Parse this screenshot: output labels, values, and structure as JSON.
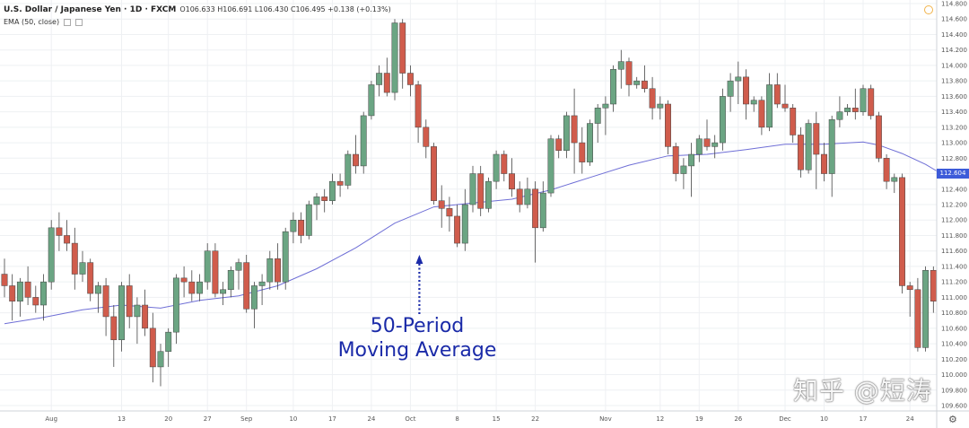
{
  "header": {
    "symbol": "U.S. Dollar / Japanese Yen · 1D · FXCM",
    "ohlc": "O106.633 H106.691 L106.430 C106.495 +0.138 (+0.13%)",
    "indicator": "EMA (50, close)"
  },
  "annotation": {
    "line1": "50-Period",
    "line2": "Moving Average"
  },
  "watermark": "知乎 @短涛",
  "price_tag": "112.604",
  "colors": {
    "up": "#6ba583",
    "down": "#d05c4c",
    "ema": "#6f6fd6",
    "arrow": "#1a2aa8",
    "grid": "#eef0f3",
    "price_tag": "#3d5bd9"
  },
  "icons": {
    "scale": "circle-icon",
    "settings": "gear-icon"
  },
  "chart_data": {
    "type": "candlestick",
    "y_axis": {
      "ticks": [
        "114.800",
        "114.600",
        "114.400",
        "114.200",
        "114.000",
        "113.800",
        "113.600",
        "113.400",
        "113.200",
        "113.000",
        "112.800",
        "112.600",
        "112.400",
        "112.200",
        "112.000",
        "111.800",
        "111.600",
        "111.400",
        "111.200",
        "111.000",
        "110.800",
        "110.600",
        "110.400",
        "110.200",
        "110.000",
        "109.800",
        "109.600"
      ],
      "ylim": [
        109.6,
        114.8
      ]
    },
    "x_axis": {
      "ticks": [
        "Aug",
        "13",
        "20",
        "27",
        "Sep",
        "10",
        "17",
        "24",
        "Oct",
        "8",
        "15",
        "22",
        "Nov",
        "12",
        "19",
        "26",
        "Dec",
        "10",
        "17",
        "24"
      ],
      "tick_index": [
        6,
        15,
        21,
        26,
        31,
        37,
        42,
        47,
        52,
        58,
        63,
        68,
        77,
        84,
        89,
        94,
        100,
        105,
        110,
        116
      ]
    },
    "ohlc": [
      [
        111.3,
        111.5,
        111.0,
        111.15
      ],
      [
        111.15,
        111.3,
        110.7,
        110.95
      ],
      [
        110.95,
        111.25,
        110.75,
        111.2
      ],
      [
        111.2,
        111.4,
        110.9,
        111.0
      ],
      [
        111.0,
        111.15,
        110.8,
        110.9
      ],
      [
        110.9,
        111.3,
        110.7,
        111.2
      ],
      [
        111.2,
        112.0,
        111.1,
        111.9
      ],
      [
        111.9,
        112.1,
        111.6,
        111.8
      ],
      [
        111.8,
        112.0,
        111.6,
        111.7
      ],
      [
        111.7,
        111.9,
        111.1,
        111.3
      ],
      [
        111.3,
        111.6,
        111.2,
        111.45
      ],
      [
        111.45,
        111.5,
        110.95,
        111.05
      ],
      [
        111.05,
        111.2,
        110.8,
        111.15
      ],
      [
        111.15,
        111.25,
        110.5,
        110.75
      ],
      [
        110.75,
        110.9,
        110.1,
        110.45
      ],
      [
        110.45,
        111.2,
        110.3,
        111.15
      ],
      [
        111.15,
        111.3,
        110.6,
        110.75
      ],
      [
        110.75,
        111.0,
        110.4,
        110.9
      ],
      [
        110.9,
        111.1,
        110.5,
        110.6
      ],
      [
        110.6,
        110.8,
        109.9,
        110.1
      ],
      [
        110.1,
        110.4,
        109.85,
        110.3
      ],
      [
        110.3,
        110.6,
        110.1,
        110.55
      ],
      [
        110.55,
        111.3,
        110.4,
        111.25
      ],
      [
        111.25,
        111.4,
        111.0,
        111.2
      ],
      [
        111.2,
        111.35,
        110.95,
        111.05
      ],
      [
        111.05,
        111.3,
        110.95,
        111.2
      ],
      [
        111.2,
        111.7,
        111.1,
        111.6
      ],
      [
        111.6,
        111.7,
        111.0,
        111.05
      ],
      [
        111.05,
        111.2,
        110.9,
        111.1
      ],
      [
        111.1,
        111.4,
        111.0,
        111.35
      ],
      [
        111.35,
        111.5,
        111.1,
        111.45
      ],
      [
        111.45,
        111.55,
        110.8,
        110.85
      ],
      [
        110.85,
        111.2,
        110.6,
        111.15
      ],
      [
        111.15,
        111.3,
        110.9,
        111.2
      ],
      [
        111.2,
        111.6,
        111.1,
        111.5
      ],
      [
        111.5,
        111.7,
        111.1,
        111.2
      ],
      [
        111.2,
        111.9,
        111.1,
        111.85
      ],
      [
        111.85,
        112.1,
        111.7,
        112.0
      ],
      [
        112.0,
        112.1,
        111.7,
        111.8
      ],
      [
        111.8,
        112.25,
        111.75,
        112.2
      ],
      [
        112.2,
        112.35,
        112.0,
        112.3
      ],
      [
        112.3,
        112.4,
        112.1,
        112.25
      ],
      [
        112.25,
        112.6,
        112.2,
        112.5
      ],
      [
        112.5,
        112.6,
        112.3,
        112.45
      ],
      [
        112.45,
        112.9,
        112.4,
        112.85
      ],
      [
        112.85,
        113.1,
        112.6,
        112.7
      ],
      [
        112.7,
        113.4,
        112.6,
        113.35
      ],
      [
        113.35,
        113.8,
        113.3,
        113.75
      ],
      [
        113.75,
        114.0,
        113.6,
        113.9
      ],
      [
        113.9,
        114.1,
        113.6,
        113.65
      ],
      [
        113.65,
        114.6,
        113.55,
        114.55
      ],
      [
        114.55,
        114.6,
        113.7,
        113.9
      ],
      [
        113.9,
        114.0,
        113.6,
        113.75
      ],
      [
        113.75,
        113.8,
        113.0,
        113.2
      ],
      [
        113.2,
        113.3,
        112.8,
        112.95
      ],
      [
        112.95,
        113.0,
        112.2,
        112.25
      ],
      [
        112.25,
        112.45,
        111.9,
        112.15
      ],
      [
        112.15,
        112.3,
        111.85,
        112.05
      ],
      [
        112.05,
        112.2,
        111.65,
        111.7
      ],
      [
        111.7,
        112.4,
        111.6,
        112.2
      ],
      [
        112.2,
        112.7,
        112.1,
        112.6
      ],
      [
        112.6,
        112.7,
        112.05,
        112.15
      ],
      [
        112.15,
        112.55,
        112.1,
        112.5
      ],
      [
        112.5,
        112.9,
        112.4,
        112.85
      ],
      [
        112.85,
        112.9,
        112.5,
        112.6
      ],
      [
        112.6,
        112.8,
        112.3,
        112.4
      ],
      [
        112.4,
        112.5,
        112.1,
        112.2
      ],
      [
        112.2,
        112.55,
        112.15,
        112.4
      ],
      [
        112.4,
        112.5,
        111.45,
        111.9
      ],
      [
        111.9,
        112.5,
        111.85,
        112.35
      ],
      [
        112.35,
        113.1,
        112.3,
        113.05
      ],
      [
        113.05,
        113.1,
        112.8,
        112.9
      ],
      [
        112.9,
        113.4,
        112.8,
        113.35
      ],
      [
        113.35,
        113.7,
        112.6,
        113.0
      ],
      [
        113.0,
        113.2,
        112.6,
        112.75
      ],
      [
        112.75,
        113.3,
        112.7,
        113.25
      ],
      [
        113.25,
        113.5,
        113.0,
        113.45
      ],
      [
        113.45,
        113.6,
        113.1,
        113.5
      ],
      [
        113.5,
        114.0,
        113.4,
        113.95
      ],
      [
        113.95,
        114.2,
        113.7,
        114.05
      ],
      [
        114.05,
        114.1,
        113.6,
        113.75
      ],
      [
        113.75,
        113.85,
        113.7,
        113.8
      ],
      [
        113.8,
        114.0,
        113.65,
        113.7
      ],
      [
        113.7,
        113.85,
        113.3,
        113.45
      ],
      [
        113.45,
        113.6,
        113.3,
        113.5
      ],
      [
        113.5,
        113.55,
        112.85,
        112.95
      ],
      [
        112.95,
        113.0,
        112.5,
        112.6
      ],
      [
        112.6,
        112.8,
        112.4,
        112.7
      ],
      [
        112.7,
        113.0,
        112.3,
        112.85
      ],
      [
        112.85,
        113.1,
        112.75,
        113.05
      ],
      [
        113.05,
        113.3,
        112.9,
        112.95
      ],
      [
        112.95,
        113.1,
        112.8,
        113.0
      ],
      [
        113.0,
        113.7,
        112.9,
        113.6
      ],
      [
        113.6,
        113.9,
        113.4,
        113.8
      ],
      [
        113.8,
        114.05,
        113.5,
        113.85
      ],
      [
        113.85,
        113.95,
        113.3,
        113.5
      ],
      [
        113.5,
        113.6,
        113.4,
        113.55
      ],
      [
        113.55,
        113.6,
        113.1,
        113.2
      ],
      [
        113.2,
        113.9,
        113.15,
        113.75
      ],
      [
        113.75,
        113.9,
        113.45,
        113.5
      ],
      [
        113.5,
        113.75,
        113.4,
        113.45
      ],
      [
        113.45,
        113.5,
        113.0,
        113.1
      ],
      [
        113.1,
        113.2,
        112.55,
        112.65
      ],
      [
        112.65,
        113.3,
        112.6,
        113.25
      ],
      [
        113.25,
        113.4,
        112.4,
        112.85
      ],
      [
        112.85,
        113.0,
        112.5,
        112.6
      ],
      [
        112.6,
        113.35,
        112.3,
        113.3
      ],
      [
        113.3,
        113.6,
        113.2,
        113.4
      ],
      [
        113.4,
        113.5,
        113.35,
        113.45
      ],
      [
        113.45,
        113.7,
        113.3,
        113.4
      ],
      [
        113.4,
        113.75,
        113.35,
        113.7
      ],
      [
        113.7,
        113.75,
        113.3,
        113.35
      ],
      [
        113.35,
        113.4,
        112.75,
        112.8
      ],
      [
        112.8,
        112.85,
        112.4,
        112.5
      ],
      [
        112.5,
        112.6,
        112.35,
        112.55
      ],
      [
        112.55,
        112.6,
        111.05,
        111.15
      ],
      [
        111.15,
        111.2,
        110.75,
        111.1
      ],
      [
        111.1,
        111.25,
        110.3,
        110.35
      ],
      [
        110.35,
        111.4,
        110.3,
        111.35
      ],
      [
        111.35,
        111.4,
        110.8,
        110.95
      ]
    ],
    "ema_series": [
      [
        0,
        110.66
      ],
      [
        5,
        110.74
      ],
      [
        10,
        110.84
      ],
      [
        15,
        110.9
      ],
      [
        20,
        110.86
      ],
      [
        25,
        110.96
      ],
      [
        30,
        111.02
      ],
      [
        35,
        111.15
      ],
      [
        40,
        111.37
      ],
      [
        45,
        111.64
      ],
      [
        50,
        111.96
      ],
      [
        55,
        112.17
      ],
      [
        60,
        112.22
      ],
      [
        65,
        112.27
      ],
      [
        70,
        112.39
      ],
      [
        75,
        112.55
      ],
      [
        80,
        112.71
      ],
      [
        85,
        112.83
      ],
      [
        90,
        112.85
      ],
      [
        95,
        112.91
      ],
      [
        100,
        112.98
      ],
      [
        105,
        112.98
      ],
      [
        110,
        113.01
      ],
      [
        112,
        112.97
      ],
      [
        115,
        112.86
      ],
      [
        118,
        112.72
      ],
      [
        120,
        112.6
      ]
    ]
  }
}
